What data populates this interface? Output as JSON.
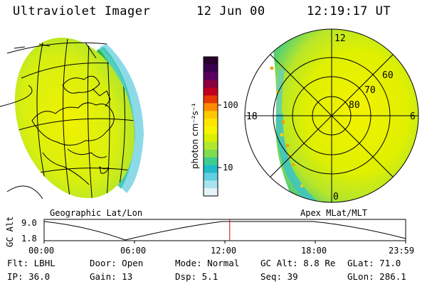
{
  "header": {
    "title": "Ultraviolet Imager",
    "date": "12 Jun 00",
    "time": "12:19:17 UT"
  },
  "left_panel": {
    "label": "Geographic Lat/Lon"
  },
  "right_panel": {
    "label": "Apex MLat/MLT",
    "mlt_labels": {
      "top": "12",
      "left": "18",
      "right": "6",
      "bottom": "0"
    },
    "mlat_labels": [
      "60",
      "70",
      "80"
    ]
  },
  "colorbar": {
    "unit_label": "photon cm⁻²s⁻¹",
    "ticks": [
      "100",
      "10"
    ],
    "colors": [
      "#2a0030",
      "#3a0050",
      "#5a0060",
      "#8a0040",
      "#c0001e",
      "#e63a00",
      "#ff8c00",
      "#ffc800",
      "#ffe600",
      "#f5f500",
      "#d8f000",
      "#b0e830",
      "#7fdc50",
      "#40cc90",
      "#20bcc8",
      "#60cfe0",
      "#a8e3ee",
      "#e6f4f8"
    ]
  },
  "altitude_plot": {
    "ylabel": "GC Alt",
    "yticks": [
      "9.0",
      "1.8"
    ],
    "xticks": [
      "00:00",
      "06:00",
      "12:00",
      "18:00",
      "23:59"
    ],
    "current_time_hours": 12.32,
    "marker_color": "#d00000"
  },
  "status": {
    "row1": [
      {
        "label": "Flt:",
        "value": "LBHL"
      },
      {
        "label": "Door:",
        "value": "Open"
      },
      {
        "label": "Mode:",
        "value": "Normal"
      },
      {
        "label": "GC Alt:",
        "value": "8.8 Re"
      },
      {
        "label": "GLat:",
        "value": "71.0"
      }
    ],
    "row2": [
      {
        "label": "IP:",
        "value": "36.0"
      },
      {
        "label": "Gain:",
        "value": "13"
      },
      {
        "label": "Dsp:",
        "value": "5.1"
      },
      {
        "label": "Seq:",
        "value": "39"
      },
      {
        "label": "GLon:",
        "value": "286.1"
      }
    ]
  }
}
